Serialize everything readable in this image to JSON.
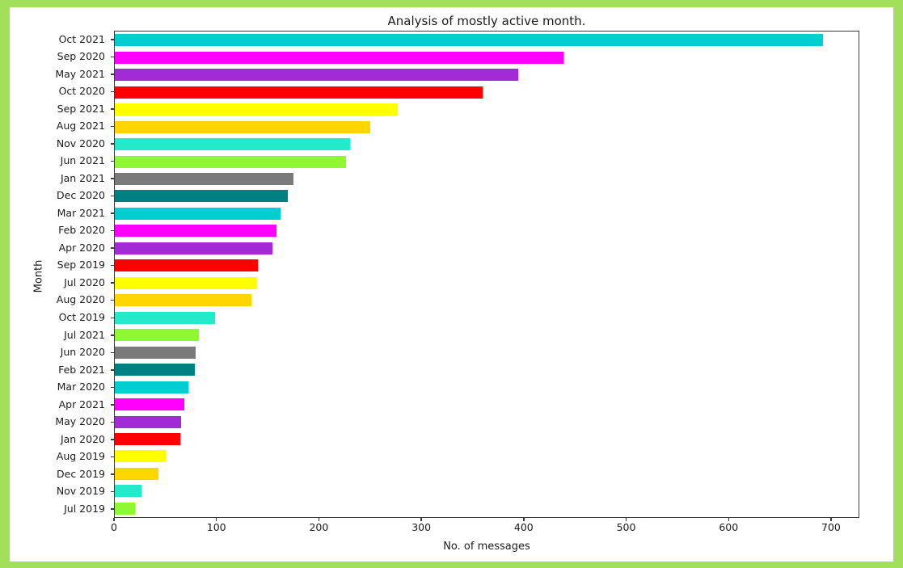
{
  "frame": {
    "border_color": "#a2e05c",
    "figure_background": "#ffffff",
    "spine_color": "#3b3b3b",
    "text_color": "#1c1c1c"
  },
  "chart_data": {
    "type": "bar",
    "orientation": "horizontal",
    "title": "Analysis of mostly active month.",
    "xlabel": "No. of messages",
    "ylabel": "Month",
    "grid": false,
    "legend": "none",
    "xlim": [
      0,
      727.65
    ],
    "xticks": [
      0,
      100,
      200,
      300,
      400,
      500,
      600,
      700
    ],
    "categories": [
      "Oct 2021",
      "Sep 2020",
      "May 2021",
      "Oct 2020",
      "Sep 2021",
      "Aug 2021",
      "Nov 2020",
      "Jun 2021",
      "Jan 2021",
      "Dec 2020",
      "Mar 2021",
      "Feb 2020",
      "Apr 2020",
      "Sep 2019",
      "Jul 2020",
      "Aug 2020",
      "Oct 2019",
      "Jul 2021",
      "Jun 2020",
      "Feb 2021",
      "Mar 2020",
      "Apr 2021",
      "May 2020",
      "Jan 2020",
      "Aug 2019",
      "Dec 2019",
      "Nov 2019",
      "Jul 2019"
    ],
    "values": [
      693,
      439,
      395,
      360,
      277,
      250,
      230,
      226,
      175,
      169,
      162,
      158,
      154,
      140,
      139,
      134,
      98,
      82,
      79,
      78,
      72,
      68,
      65,
      64,
      50,
      43,
      26,
      20
    ],
    "bar_color_cycle": [
      "#00CED1",
      "#FF00FF",
      "#A22BD5",
      "#FF0000",
      "#FFFF00",
      "#FFD700",
      "#25E9CB",
      "#90F833",
      "#7A7A7A",
      "#008080"
    ]
  }
}
